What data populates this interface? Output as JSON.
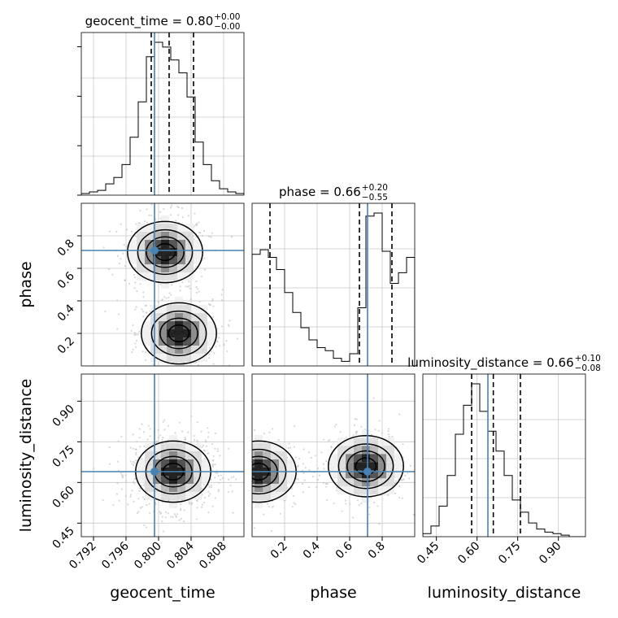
{
  "chart_data": {
    "type": "corner",
    "parameters": [
      "geocent_time",
      "phase",
      "luminosity_distance"
    ],
    "truths": {
      "geocent_time": 0.7995,
      "phase": 0.71,
      "luminosity_distance": 0.64
    },
    "marginal_titles": [
      {
        "param": "geocent_time",
        "prefix": "geocent_time = 0.80",
        "plus": "+0.00",
        "minus": "−0.00"
      },
      {
        "param": "phase",
        "prefix": "phase = 0.66",
        "plus": "+0.20",
        "minus": "−0.55"
      },
      {
        "param": "luminosity_distance",
        "prefix": "luminosity_distance = 0.66",
        "plus": "+0.10",
        "minus": "−0.08"
      }
    ],
    "ranges": {
      "geocent_time": [
        0.7905,
        0.8105
      ],
      "phase": [
        0.0,
        1.0
      ],
      "luminosity_distance": [
        0.4,
        1.0
      ]
    },
    "ticks": {
      "geocent_time": [
        "0.792",
        "0.796",
        "0.800",
        "0.804",
        "0.808"
      ],
      "phase": [
        "0.2",
        "0.4",
        "0.6",
        "0.8"
      ],
      "luminosity_distance": [
        "0.45",
        "0.60",
        "0.75",
        "0.90"
      ]
    },
    "quantiles": {
      "geocent_time": [
        0.7991,
        0.8013,
        0.8043
      ],
      "phase": [
        0.11,
        0.66,
        0.86
      ],
      "luminosity_distance": [
        0.58,
        0.66,
        0.76
      ]
    },
    "histograms": {
      "geocent_time": {
        "edges_start": 0.7905,
        "bin_width": 0.001,
        "counts": [
          1,
          2,
          3,
          7,
          11,
          19,
          36,
          58,
          86,
          95,
          92,
          84,
          76,
          61,
          33,
          19,
          9,
          4,
          2,
          1
        ]
      },
      "phase": {
        "edges_start": 0.0,
        "bin_width": 0.05,
        "counts": [
          73,
          76,
          71,
          63,
          48,
          35,
          25,
          17,
          12,
          10,
          5,
          3,
          8,
          38,
          98,
          100,
          75,
          54,
          61,
          71
        ]
      },
      "luminosity_distance": {
        "edges_start": 0.4,
        "bin_width": 0.03,
        "counts": [
          2,
          7,
          20,
          40,
          67,
          86,
          100,
          82,
          69,
          56,
          40,
          24,
          16,
          9,
          5,
          3,
          2,
          1,
          0,
          0
        ]
      }
    },
    "joint_modes": [
      {
        "x": "geocent_time",
        "y": "phase",
        "centers": [
          [
            0.8008,
            0.7
          ],
          [
            0.8025,
            0.2
          ]
        ]
      },
      {
        "x": "geocent_time",
        "y": "luminosity_distance",
        "centers": [
          [
            0.8018,
            0.64
          ]
        ]
      },
      {
        "x": "phase",
        "y": "luminosity_distance",
        "centers": [
          [
            0.7,
            0.66
          ],
          [
            0.04,
            0.64
          ]
        ]
      }
    ],
    "grid": true
  }
}
